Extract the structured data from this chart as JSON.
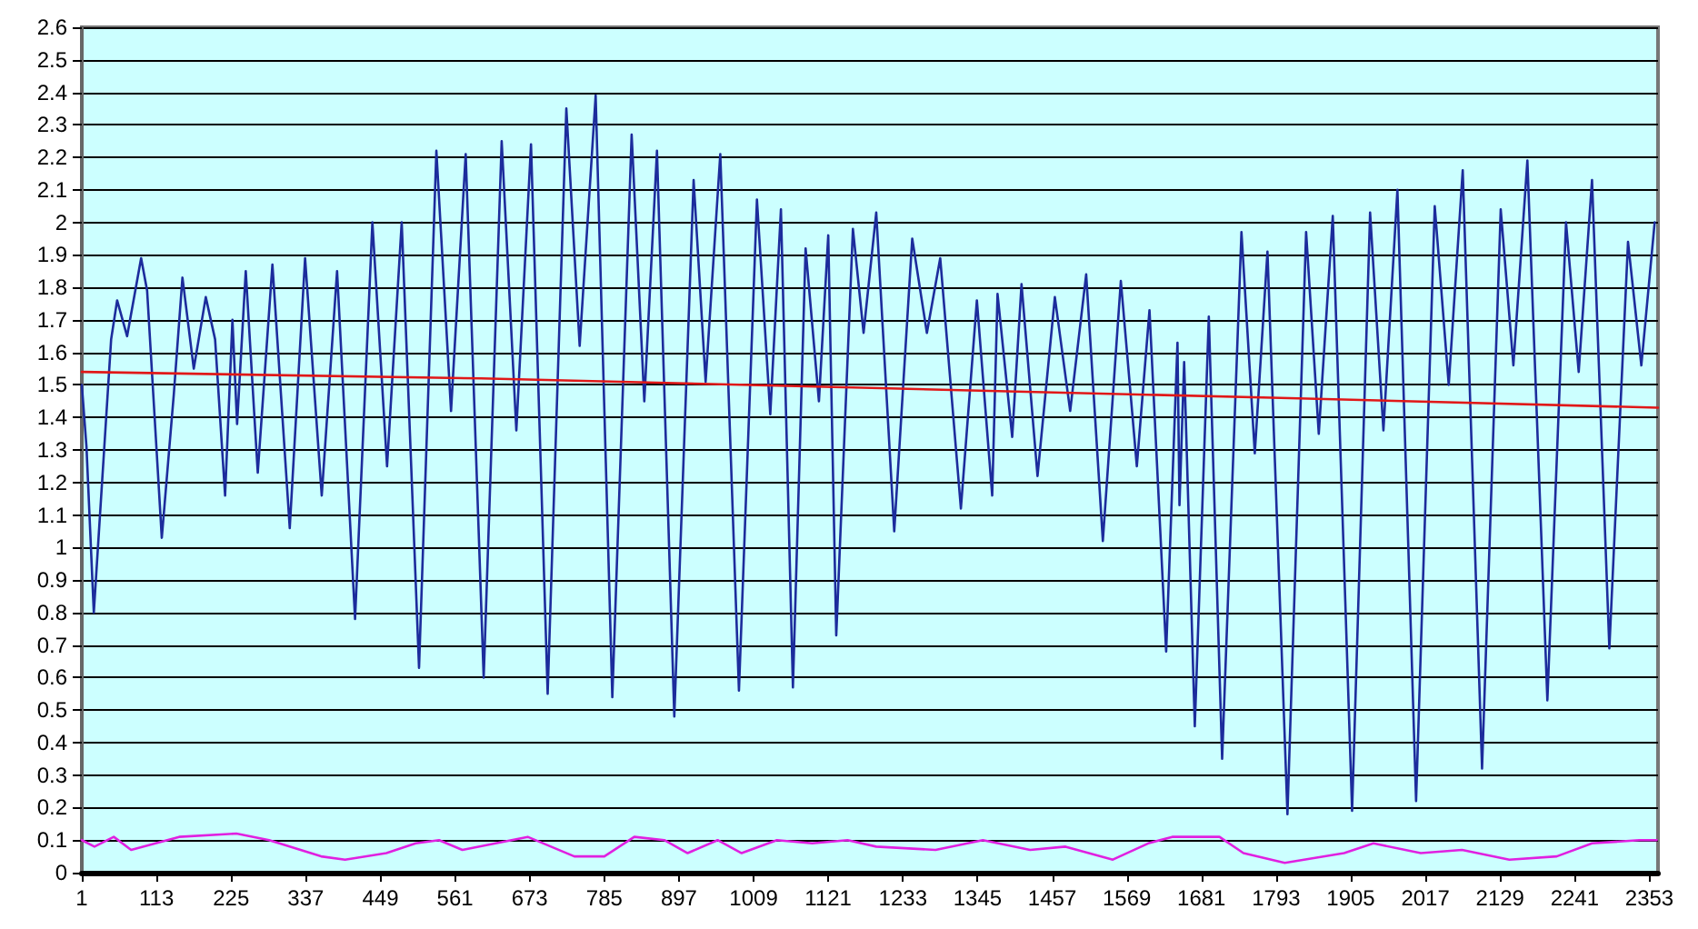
{
  "chart_data": {
    "type": "line",
    "xlim": [
      1,
      2366
    ],
    "xticks": [
      1,
      113,
      225,
      337,
      449,
      561,
      673,
      785,
      897,
      1009,
      1121,
      1233,
      1345,
      1457,
      1569,
      1681,
      1793,
      1905,
      2017,
      2129,
      2241,
      2353
    ],
    "ylim": [
      0,
      2.6
    ],
    "yticks": [
      0,
      0.1,
      0.2,
      0.3,
      0.4,
      0.5,
      0.6,
      0.7,
      0.8,
      0.9,
      1,
      1.1,
      1.2,
      1.3,
      1.4,
      1.5,
      1.6,
      1.7,
      1.8,
      1.9,
      2,
      2.1,
      2.2,
      2.3,
      2.4,
      2.5,
      2.6
    ],
    "grid": "y",
    "marker": "none",
    "line_style": "solid",
    "series": [
      {
        "color": "#1c2c9c",
        "x": [
          1,
          8,
          19,
          45,
          54,
          69,
          90,
          99,
          121,
          139,
          152,
          169,
          187,
          201,
          216,
          227,
          234,
          247,
          265,
          287,
          313,
          336,
          361,
          384,
          411,
          437,
          459,
          481,
          507,
          533,
          555,
          577,
          604,
          631,
          653,
          675,
          700,
          728,
          748,
          772,
          797,
          826,
          845,
          864,
          890,
          919,
          937,
          959,
          987,
          1014,
          1034,
          1050,
          1068,
          1087,
          1107,
          1121,
          1133,
          1158,
          1174,
          1193,
          1220,
          1247,
          1269,
          1289,
          1320,
          1344,
          1367,
          1375,
          1397,
          1411,
          1435,
          1461,
          1484,
          1508,
          1533,
          1560,
          1584,
          1603,
          1628,
          1645,
          1648,
          1655,
          1671,
          1692,
          1712,
          1741,
          1761,
          1780,
          1810,
          1838,
          1857,
          1878,
          1907,
          1934,
          1954,
          1975,
          2003,
          2031,
          2052,
          2073,
          2102,
          2130,
          2149,
          2170,
          2200,
          2228,
          2247,
          2267,
          2293,
          2321,
          2341,
          2361
        ],
        "values": [
          1.5,
          1.31,
          0.8,
          1.64,
          1.76,
          1.65,
          1.89,
          1.79,
          1.03,
          1.47,
          1.83,
          1.55,
          1.77,
          1.64,
          1.16,
          1.7,
          1.38,
          1.85,
          1.23,
          1.87,
          1.06,
          1.89,
          1.16,
          1.85,
          0.78,
          2.0,
          1.25,
          2.0,
          0.63,
          2.22,
          1.42,
          2.21,
          0.6,
          2.25,
          1.36,
          2.24,
          0.55,
          2.35,
          1.62,
          2.39,
          0.54,
          2.27,
          1.45,
          2.22,
          0.48,
          2.13,
          1.51,
          2.21,
          0.56,
          2.07,
          1.41,
          2.04,
          0.57,
          1.92,
          1.45,
          1.96,
          0.73,
          1.98,
          1.66,
          2.03,
          1.05,
          1.95,
          1.66,
          1.89,
          1.12,
          1.76,
          1.16,
          1.78,
          1.34,
          1.81,
          1.22,
          1.77,
          1.42,
          1.84,
          1.02,
          1.82,
          1.25,
          1.73,
          0.68,
          1.63,
          1.13,
          1.57,
          0.45,
          1.71,
          0.35,
          1.97,
          1.29,
          1.91,
          0.18,
          1.97,
          1.35,
          2.02,
          0.19,
          2.03,
          1.36,
          2.1,
          0.22,
          2.05,
          1.5,
          2.16,
          0.32,
          2.04,
          1.56,
          2.19,
          0.53,
          2.0,
          1.54,
          2.13,
          0.69,
          1.94,
          1.56,
          2.0
        ]
      },
      {
        "color": "#e01818",
        "x": [
          1,
          600,
          1200,
          1800,
          2366
        ],
        "values": [
          1.54,
          1.52,
          1.49,
          1.46,
          1.43
        ]
      },
      {
        "color": "#e020e0",
        "x": [
          1,
          20,
          49,
          75,
          147,
          233,
          282,
          360,
          396,
          458,
          502,
          537,
          572,
          670,
          740,
          785,
          830,
          875,
          910,
          955,
          991,
          1044,
          1097,
          1150,
          1193,
          1282,
          1353,
          1424,
          1477,
          1548,
          1601,
          1637,
          1708,
          1744,
          1806,
          1895,
          1939,
          2010,
          2072,
          2143,
          2214,
          2267,
          2338,
          2364
        ],
        "values": [
          0.1,
          0.08,
          0.11,
          0.07,
          0.11,
          0.12,
          0.1,
          0.05,
          0.04,
          0.06,
          0.09,
          0.1,
          0.07,
          0.11,
          0.05,
          0.05,
          0.11,
          0.1,
          0.06,
          0.1,
          0.06,
          0.1,
          0.09,
          0.1,
          0.08,
          0.07,
          0.1,
          0.07,
          0.08,
          0.04,
          0.09,
          0.11,
          0.11,
          0.06,
          0.03,
          0.06,
          0.09,
          0.06,
          0.07,
          0.04,
          0.05,
          0.09,
          0.1,
          0.1
        ]
      }
    ]
  }
}
